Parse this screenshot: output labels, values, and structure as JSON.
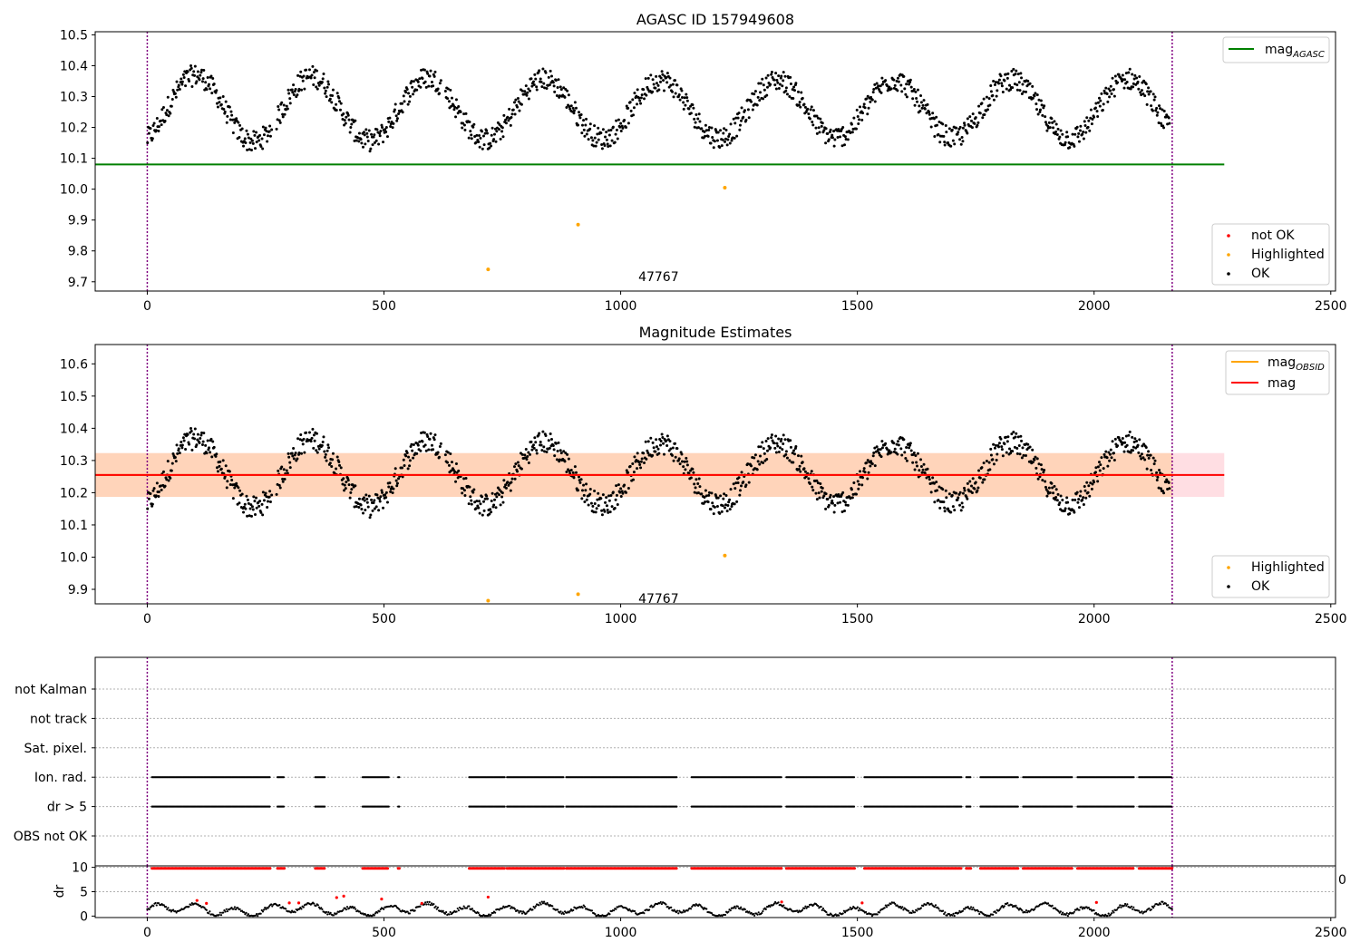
{
  "chart_data": [
    {
      "type": "scatter",
      "title": "AGASC ID 157949608",
      "xlim": [
        -110,
        2510
      ],
      "ylim": [
        9.67,
        10.51
      ],
      "xticks": [
        0,
        500,
        1000,
        1500,
        2000,
        2500
      ],
      "yticks": [
        9.7,
        9.8,
        9.9,
        10.0,
        10.1,
        10.2,
        10.3,
        10.4,
        10.5
      ],
      "x_tick_labels": [
        "0",
        "500",
        "1000",
        "1500",
        "2000",
        "2500"
      ],
      "y_tick_labels": [
        "9.7",
        "9.8",
        "9.9",
        "10.0",
        "10.1",
        "10.2",
        "10.3",
        "10.4",
        "10.5"
      ],
      "vlines": [
        0,
        2165
      ],
      "annotation": {
        "text": "47767",
        "x": 1080,
        "y": 9.69
      },
      "reference_line": {
        "label": "mag",
        "label_sub": "AGASC",
        "value": 10.08,
        "x_range": [
          -110,
          2275
        ],
        "color": "#008000"
      },
      "highlighted_points": [
        {
          "x": 720,
          "y": 9.74
        },
        {
          "x": 910,
          "y": 9.885
        },
        {
          "x": 1220,
          "y": 10.005
        }
      ],
      "series_style": {
        "ok_color": "#000000",
        "highlight_color": "#ffa500",
        "notok_color": "#ff0000"
      },
      "legends": {
        "top_right": [
          {
            "label": "mag",
            "sub": "AGASC",
            "color": "#008000"
          }
        ],
        "bottom_right": [
          {
            "label": "not OK",
            "color": "#ff0000"
          },
          {
            "label": "Highlighted",
            "color": "#ffa500"
          },
          {
            "label": "OK",
            "color": "#000000"
          }
        ]
      }
    },
    {
      "type": "scatter",
      "title": "Magnitude Estimates",
      "xlim": [
        -110,
        2510
      ],
      "ylim": [
        9.855,
        10.66
      ],
      "xticks": [
        0,
        500,
        1000,
        1500,
        2000,
        2500
      ],
      "yticks": [
        9.9,
        10.0,
        10.1,
        10.2,
        10.3,
        10.4,
        10.5,
        10.6
      ],
      "x_tick_labels": [
        "0",
        "500",
        "1000",
        "1500",
        "2000",
        "2500"
      ],
      "y_tick_labels": [
        "9.9",
        "10.0",
        "10.1",
        "10.2",
        "10.3",
        "10.4",
        "10.5",
        "10.6"
      ],
      "vlines": [
        0,
        2165
      ],
      "annotation": {
        "text": "47767",
        "x": 1080,
        "y": 9.875
      },
      "mag_line": {
        "label": "mag",
        "value": 10.255,
        "x_range": [
          -110,
          2275
        ],
        "color": "#ff0000"
      },
      "mag_obsid_line": {
        "label": "mag",
        "label_sub": "OBSID",
        "value": 10.255,
        "x_range": [
          -110,
          2165
        ],
        "color": "#ffa500"
      },
      "band": {
        "low": 10.187,
        "high": 10.323,
        "x_range": [
          -110,
          2275
        ]
      },
      "highlighted_points": [
        {
          "x": 720,
          "y": 9.865
        },
        {
          "x": 910,
          "y": 9.885
        },
        {
          "x": 1220,
          "y": 10.005
        }
      ],
      "legends": {
        "top_right": [
          {
            "label": "mag",
            "sub": "OBSID",
            "color": "#ffa500"
          },
          {
            "label": "mag",
            "sub": "",
            "color": "#ff0000"
          }
        ],
        "bottom_right": [
          {
            "label": "Highlighted",
            "color": "#ffa500"
          },
          {
            "label": "OK",
            "color": "#000000"
          }
        ]
      }
    },
    {
      "type": "scatter",
      "title": "",
      "xlim": [
        -110,
        2510
      ],
      "flag_categories": [
        "OBS not OK",
        "dr > 5",
        "Ion. rad.",
        "Sat. pixel.",
        "not track",
        "not Kalman"
      ],
      "flag_segments": [
        [
          10,
          260
        ],
        [
          275,
          290
        ],
        [
          355,
          375
        ],
        [
          455,
          510
        ],
        [
          530,
          534
        ],
        [
          680,
          755
        ],
        [
          760,
          880
        ],
        [
          885,
          1120
        ],
        [
          1150,
          1340
        ],
        [
          1350,
          1495
        ],
        [
          1515,
          1720
        ],
        [
          1730,
          1740
        ],
        [
          1760,
          1840
        ],
        [
          1850,
          1955
        ],
        [
          1965,
          2085
        ],
        [
          2095,
          2165
        ]
      ]
    },
    {
      "type": "scatter",
      "title": "",
      "ylabel": "dr",
      "xlim": [
        -110,
        2510
      ],
      "ylim": [
        -0.3,
        10.3
      ],
      "xticks": [
        0,
        500,
        1000,
        1500,
        2000,
        2500
      ],
      "yticks": [
        0,
        5,
        10
      ],
      "x_tick_labels": [
        "0",
        "500",
        "1000",
        "1500",
        "2000",
        "2500"
      ],
      "y_tick_labels": [
        "0",
        "5",
        "10"
      ],
      "clipped_label": "0"
    }
  ]
}
